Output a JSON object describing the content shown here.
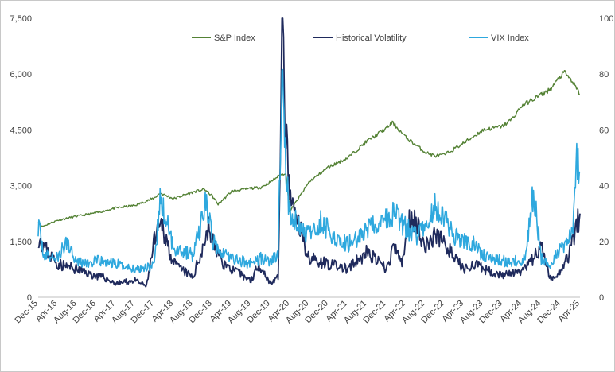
{
  "chart_data": {
    "type": "line",
    "title": "",
    "xlabel": "",
    "ylabel_left": "",
    "ylabel_right": "",
    "grid": false,
    "legend": "top-center",
    "x_categories": [
      "Dec-15",
      "Apr-16",
      "Aug-16",
      "Dec-16",
      "Apr-17",
      "Aug-17",
      "Dec-17",
      "Apr-18",
      "Aug-18",
      "Dec-18",
      "Apr-19",
      "Aug-19",
      "Dec-19",
      "Apr-20",
      "Aug-20",
      "Dec-20",
      "Apr-21",
      "Aug-21",
      "Dec-21",
      "Apr-22",
      "Aug-22",
      "Dec-22",
      "Apr-23",
      "Aug-23",
      "Dec-23",
      "Apr-24",
      "Aug-24",
      "Dec-24",
      "Apr-25"
    ],
    "y_left": {
      "min": 0,
      "max": 7500,
      "ticks": [
        "0",
        "1,500",
        "3,000",
        "4,500",
        "6,000",
        "7,500"
      ]
    },
    "y_right": {
      "min": 0,
      "max": 100,
      "ticks": [
        "0",
        "20",
        "40",
        "60",
        "80",
        "100"
      ]
    },
    "series": [
      {
        "name": "S&P Index",
        "axis": "left",
        "color": "#548235",
        "x": [
          0,
          0.2,
          1,
          2,
          3,
          4,
          5,
          6,
          6.3,
          7,
          8,
          8.6,
          9,
          9.3,
          10,
          11,
          11.5,
          12,
          12.4,
          12.8,
          13,
          14,
          15,
          16,
          17,
          18,
          18.3,
          19,
          19.5,
          20,
          20.5,
          21,
          22,
          23,
          24,
          24.5,
          25,
          26,
          26.5,
          27,
          27.2,
          27.6,
          28
        ],
        "values": [
          2050,
          1900,
          2070,
          2180,
          2270,
          2400,
          2470,
          2670,
          2800,
          2650,
          2830,
          2900,
          2720,
          2500,
          2850,
          2930,
          2950,
          3100,
          3250,
          3350,
          2300,
          3100,
          3500,
          3750,
          4200,
          4550,
          4700,
          4300,
          4100,
          3900,
          3800,
          3830,
          4150,
          4500,
          4600,
          4800,
          5150,
          5450,
          5600,
          5950,
          6050,
          5800,
          5450
        ]
      },
      {
        "name": "Historical Volatility",
        "axis": "right",
        "color": "#1f2a5c",
        "x": [
          0,
          0.5,
          1,
          2,
          2.8,
          3.4,
          4,
          5,
          5.6,
          6,
          6.4,
          7,
          8,
          8.5,
          8.8,
          9,
          9.6,
          10,
          11,
          11.4,
          12,
          12.4,
          12.6,
          12.8,
          13,
          13.5,
          14,
          15,
          16,
          17,
          18,
          18.4,
          18.8,
          19.1,
          19.3,
          19.6,
          20,
          20.5,
          21,
          21.4,
          22,
          22.5,
          23,
          24,
          25,
          25.4,
          26,
          26.5,
          27,
          27.4,
          28
        ],
        "values": [
          22,
          16,
          12,
          10,
          8,
          7,
          5,
          6,
          4,
          20,
          26,
          12,
          7,
          18,
          25,
          20,
          12,
          10,
          6,
          12,
          5,
          7,
          95,
          58,
          35,
          25,
          14,
          12,
          10,
          16,
          10,
          18,
          12,
          25,
          30,
          26,
          18,
          22,
          20,
          15,
          10,
          12,
          10,
          8,
          9,
          12,
          18,
          6,
          10,
          15,
          30
        ]
      },
      {
        "name": "VIX Index",
        "axis": "right",
        "color": "#2ea8de",
        "x": [
          0,
          0.3,
          1,
          1.5,
          2,
          2.6,
          3,
          4,
          5,
          5.6,
          6,
          6.3,
          7,
          8,
          8.4,
          8.7,
          9,
          9.6,
          10,
          11,
          11.5,
          12,
          12.4,
          12.6,
          12.8,
          13,
          13.5,
          14,
          14.6,
          15,
          15.6,
          16,
          17,
          18,
          18.4,
          19,
          19.5,
          20,
          20.5,
          21,
          21.5,
          22,
          22.5,
          23,
          24,
          25,
          25.2,
          25.6,
          26,
          26.5,
          27,
          27.3,
          27.6,
          27.8,
          28
        ],
        "values": [
          26,
          15,
          14,
          20,
          13,
          12,
          13,
          12,
          10,
          11,
          11,
          35,
          18,
          15,
          26,
          35,
          20,
          16,
          14,
          12,
          14,
          13,
          15,
          80,
          45,
          30,
          25,
          22,
          27,
          24,
          20,
          19,
          24,
          28,
          30,
          25,
          22,
          25,
          32,
          28,
          22,
          20,
          19,
          15,
          13,
          13,
          15,
          38,
          14,
          12,
          18,
          20,
          22,
          48,
          45
        ]
      }
    ]
  }
}
